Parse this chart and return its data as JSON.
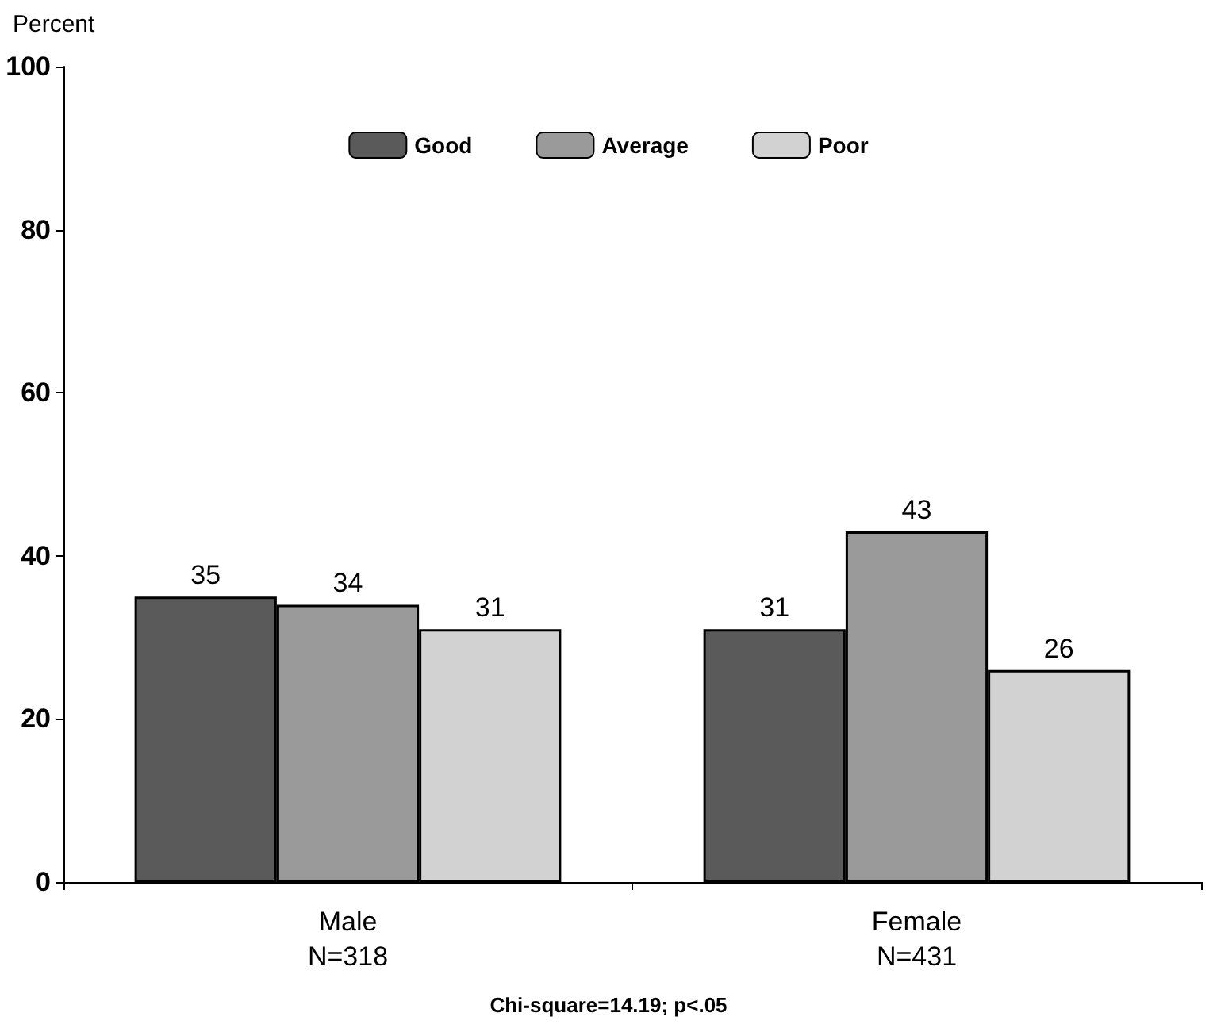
{
  "chart_data": {
    "type": "bar",
    "ylabel": "Percent",
    "categories": [
      "Male\nN=318",
      "Female\nN=431"
    ],
    "series": [
      {
        "name": "Good",
        "color": "#5a5a5a",
        "values": [
          35,
          31
        ]
      },
      {
        "name": "Average",
        "color": "#9a9a9a",
        "values": [
          34,
          43
        ]
      },
      {
        "name": "Poor",
        "color": "#d2d2d2",
        "values": [
          31,
          26
        ]
      }
    ],
    "ylim": [
      0,
      100
    ],
    "yticks": [
      0,
      20,
      40,
      60,
      80,
      100
    ],
    "grid": false,
    "legend": "top",
    "data_labels": true,
    "annotations": [
      "Chi-square=14.19; p<.05"
    ]
  }
}
